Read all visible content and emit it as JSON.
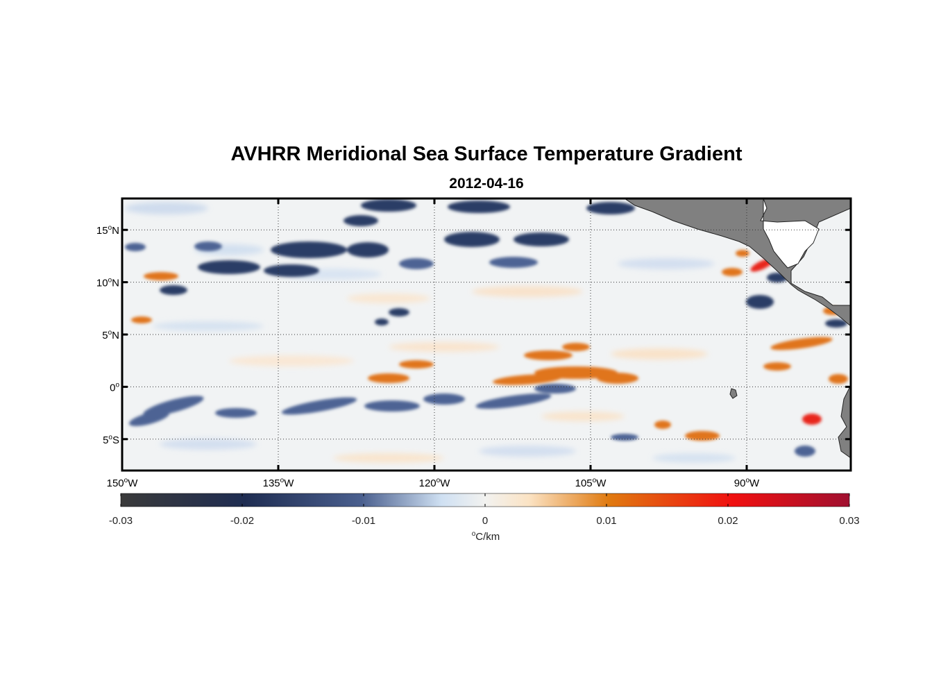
{
  "title": "AVHRR Meridional Sea Surface Temperature Gradient",
  "subtitle": "2012-04-16",
  "map": {
    "lon_range": [
      -150,
      -80
    ],
    "lat_range": [
      -8,
      18
    ],
    "lat_ticks": [
      {
        "value": 15,
        "label_num": "15",
        "label_sup": "o",
        "label_hemi": "N"
      },
      {
        "value": 10,
        "label_num": "10",
        "label_sup": "o",
        "label_hemi": "N"
      },
      {
        "value": 5,
        "label_num": "5",
        "label_sup": "o",
        "label_hemi": "N"
      },
      {
        "value": 0,
        "label_num": "0",
        "label_sup": "o",
        "label_hemi": ""
      },
      {
        "value": -5,
        "label_num": "5",
        "label_sup": "o",
        "label_hemi": "S"
      }
    ],
    "lon_ticks": [
      {
        "value": -150,
        "label_num": "150",
        "label_sup": "o",
        "label_hemi": "W"
      },
      {
        "value": -135,
        "label_num": "135",
        "label_sup": "o",
        "label_hemi": "W"
      },
      {
        "value": -120,
        "label_num": "120",
        "label_sup": "o",
        "label_hemi": "W"
      },
      {
        "value": -105,
        "label_num": "105",
        "label_sup": "o",
        "label_hemi": "W"
      },
      {
        "value": -90,
        "label_num": "90",
        "label_sup": "o",
        "label_hemi": "W"
      }
    ],
    "land_color": "#808080",
    "grid": "dotted"
  },
  "colorbar": {
    "range": [
      -0.03,
      0.03
    ],
    "ticks": [
      "-0.03",
      "-0.02",
      "-0.01",
      "0",
      "0.01",
      "0.02",
      "0.03"
    ],
    "tick_values": [
      -0.03,
      -0.02,
      -0.01,
      0,
      0.01,
      0.02,
      0.03
    ],
    "unit_sup": "o",
    "unit_text": "C/km",
    "colors": [
      "#3a3a3a",
      "#1f2d52",
      "#4a5f8e",
      "#cfe0f2",
      "#f2f2f0",
      "#fbe3c4",
      "#e07a10",
      "#f01010",
      "#a01030"
    ]
  }
}
